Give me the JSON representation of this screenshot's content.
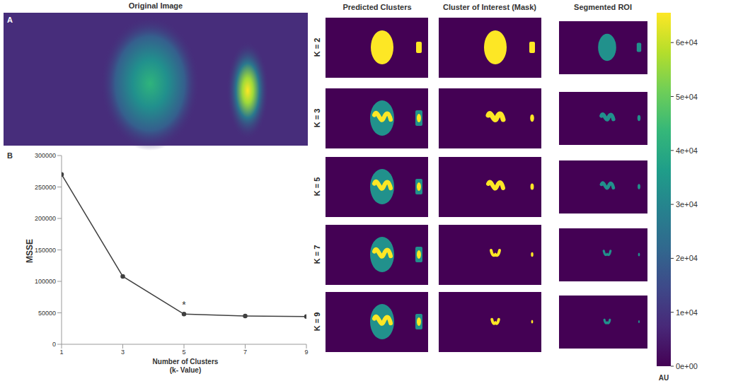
{
  "chart_data": {
    "type": "line",
    "x": [
      1,
      3,
      5,
      7,
      9
    ],
    "values": [
      270000,
      108000,
      48000,
      45000,
      44000
    ],
    "xlim": [
      1,
      9
    ],
    "ylim": [
      0,
      300000
    ],
    "xticks": [
      1,
      3,
      5,
      7,
      9
    ],
    "yticks": [
      0,
      50000,
      100000,
      150000,
      200000,
      250000,
      300000
    ],
    "x_label": [
      "Number of Clusters",
      "(k- Value)"
    ],
    "y_label": "MSSE",
    "annotations": [
      {
        "text": "*",
        "x": 5,
        "y": 63000
      }
    ],
    "color": "#404040",
    "marker": "circle",
    "grid": false
  },
  "figure": {
    "panel_labels": [
      "A",
      "B"
    ],
    "column_titles": [
      "Original Image",
      "Predicted Clusters",
      "Cluster of Interest (Mask)",
      "Segmented ROI"
    ],
    "row_labels": [
      "K = 2",
      "K = 3",
      "K = 5",
      "K = 7",
      "K = 9"
    ],
    "colorbar": {
      "range": [
        0,
        65535
      ],
      "ticks": [
        {
          "value": 0,
          "label": "0e+00"
        },
        {
          "value": 10000,
          "label": "1e+04"
        },
        {
          "value": 20000,
          "label": "2e+04"
        },
        {
          "value": 30000,
          "label": "3e+04"
        },
        {
          "value": 40000,
          "label": "4e+04"
        },
        {
          "value": 50000,
          "label": "5e+04"
        },
        {
          "value": 60000,
          "label": "6e+04"
        }
      ],
      "label": "AU"
    }
  }
}
